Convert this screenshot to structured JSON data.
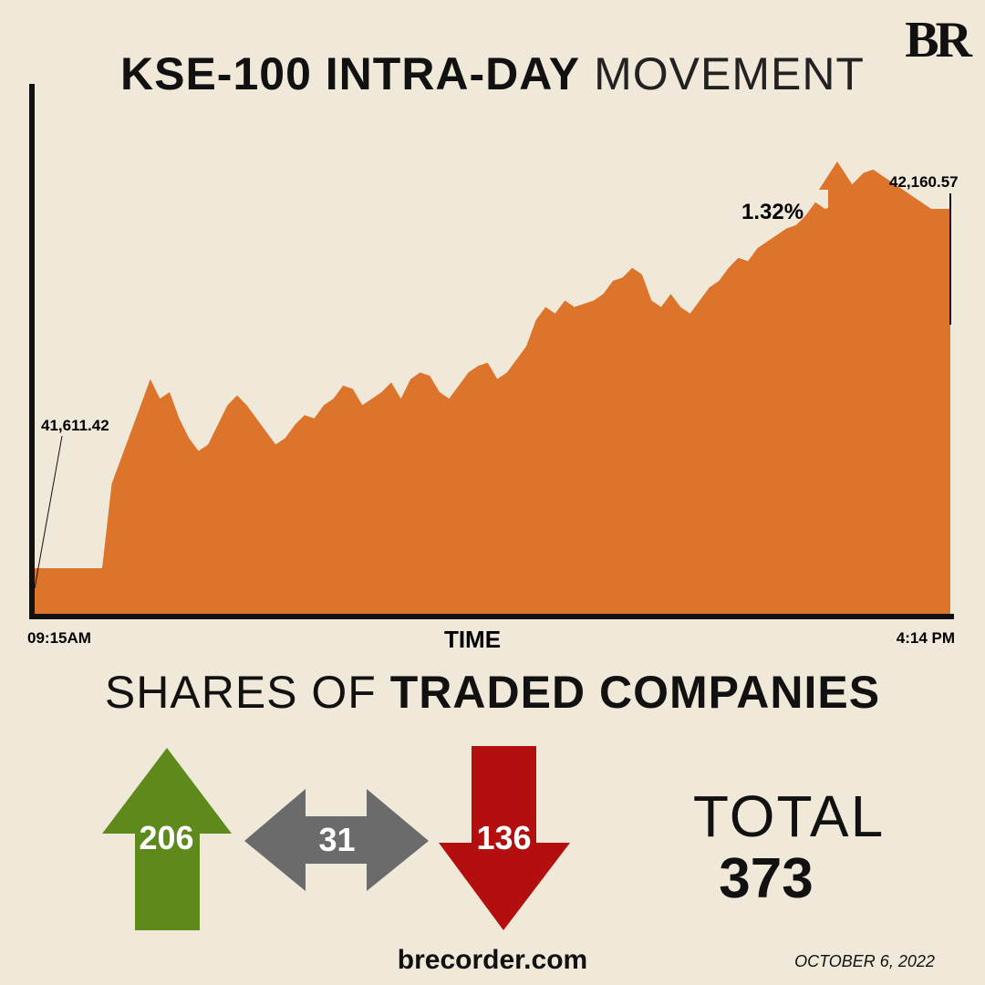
{
  "logo": "BR",
  "title": {
    "bold": "KSE-100 INTRA-DAY",
    "light": "MOVEMENT"
  },
  "chart_data": {
    "type": "area",
    "xlabel": "TIME",
    "x_start_label": "09:15AM",
    "x_end_label": "4:14 PM",
    "open_value_label": "41,611.42",
    "close_value_label": "42,160.57",
    "change_label": "1.32%",
    "change_direction": "up",
    "color": "#dc742c",
    "values": [
      41611,
      41611,
      41611,
      41611,
      41611,
      41611,
      41611,
      41611,
      41740,
      41780,
      41820,
      41860,
      41900,
      41870,
      41880,
      41840,
      41810,
      41790,
      41800,
      41830,
      41860,
      41875,
      41860,
      41840,
      41820,
      41800,
      41810,
      41830,
      41845,
      41840,
      41860,
      41870,
      41890,
      41885,
      41860,
      41870,
      41880,
      41895,
      41870,
      41900,
      41910,
      41905,
      41880,
      41870,
      41890,
      41910,
      41920,
      41925,
      41900,
      41910,
      41930,
      41950,
      41990,
      42010,
      42000,
      42020,
      42010,
      42015,
      42020,
      42030,
      42050,
      42055,
      42070,
      42060,
      42020,
      42010,
      42030,
      42010,
      42000,
      42020,
      42040,
      42050,
      42070,
      42085,
      42080,
      42100,
      42110,
      42120,
      42130,
      42135,
      42150,
      42170,
      42160,
      42165,
      42185,
      42200,
      42215,
      42220,
      42210,
      42200,
      42190,
      42180,
      42170,
      42160,
      42160,
      42160
    ],
    "ylim": [
      41540,
      42270
    ]
  },
  "shares": {
    "title_light": "SHARES OF",
    "title_bold": "TRADED COMPANIES",
    "up": "206",
    "unchanged": "31",
    "down": "136",
    "total_label": "TOTAL",
    "total": "373",
    "up_color": "#5e8a1c",
    "unchanged_color": "#6b6b6b",
    "down_color": "#b30f0f"
  },
  "footer": {
    "site": "brecorder.com",
    "date": "OCTOBER 6, 2022"
  },
  "icons": {
    "change_arrow": "up-arrow-icon"
  }
}
